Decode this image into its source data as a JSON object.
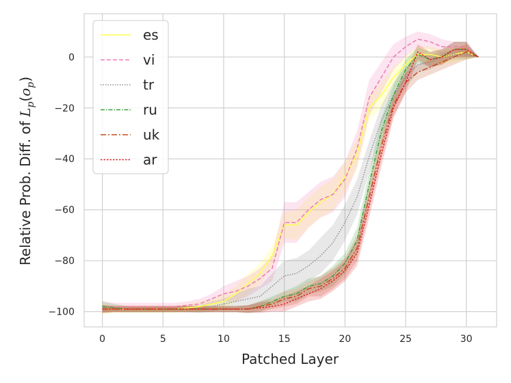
{
  "chart_data": {
    "type": "line",
    "title": "",
    "xlabel": "Patched Layer",
    "ylabel_text": "Relative Prob. Diff. of ",
    "ylabel_math": {
      "script": "L",
      "sub": "p",
      "open": "(",
      "var": "o",
      "var_sub": "p",
      "close": ")"
    },
    "xlim": [
      -1.5,
      32.5
    ],
    "ylim": [
      -106,
      17
    ],
    "xticks": [
      0,
      5,
      10,
      15,
      20,
      25,
      30
    ],
    "xtick_labels": [
      "0",
      "5",
      "10",
      "15",
      "20",
      "25",
      "30"
    ],
    "yticks": [
      0,
      -20,
      -40,
      -60,
      -80,
      -100
    ],
    "ytick_labels": [
      "0",
      "−20",
      "−40",
      "−60",
      "−80",
      "−100"
    ],
    "grid": true,
    "legend_position": "top-left",
    "x": [
      0,
      1,
      2,
      3,
      4,
      5,
      6,
      7,
      8,
      9,
      10,
      11,
      12,
      13,
      14,
      15,
      16,
      17,
      18,
      19,
      20,
      21,
      22,
      23,
      24,
      25,
      26,
      27,
      28,
      29,
      30,
      31
    ],
    "series": [
      {
        "name": "es",
        "color": "#ffff4d",
        "dash": "",
        "values": [
          -99,
          -99,
          -99,
          -99,
          -99,
          -99,
          -99,
          -98.5,
          -98,
          -97,
          -96,
          -93,
          -89,
          -85,
          -78,
          -66,
          -66,
          -61,
          -57,
          -54,
          -47,
          -38,
          -20,
          -15,
          -8,
          -3,
          1,
          1,
          0,
          1,
          2,
          0
        ],
        "band": [
          2,
          1.5,
          1.5,
          1.5,
          1.5,
          1.5,
          1.5,
          1.5,
          2,
          2,
          3,
          3,
          4,
          4,
          4,
          5,
          6,
          6,
          6,
          6,
          6,
          6,
          5,
          5,
          4,
          3,
          3,
          3,
          3,
          3,
          3,
          0
        ]
      },
      {
        "name": "vi",
        "color": "#ee79b2",
        "dash": "6 3",
        "values": [
          -98,
          -98,
          -98,
          -98,
          -98,
          -98,
          -98,
          -97.5,
          -97,
          -95,
          -93,
          -92,
          -90,
          -87,
          -83,
          -65,
          -65,
          -60,
          -56,
          -54,
          -48,
          -36,
          -16,
          -8,
          0,
          4,
          7,
          6,
          4,
          4,
          4,
          0
        ],
        "band": [
          2,
          1.5,
          1.5,
          1.5,
          1.5,
          1.5,
          1.5,
          1.5,
          2,
          2,
          3,
          4,
          4,
          4,
          5,
          8,
          8,
          7,
          7,
          7,
          7,
          7,
          7,
          6,
          5,
          4,
          3,
          3,
          3,
          2,
          2,
          0
        ]
      },
      {
        "name": "tr",
        "color": "#8c8c8c",
        "dash": "1.5 2",
        "values": [
          -99,
          -99,
          -99,
          -99,
          -99,
          -99,
          -99,
          -99,
          -99,
          -98,
          -97,
          -96,
          -95,
          -94,
          -90,
          -86,
          -85,
          -82,
          -78,
          -73,
          -65,
          -55,
          -39,
          -25,
          -15,
          -8,
          -3,
          -2,
          0,
          1,
          1,
          0
        ],
        "band": [
          1.5,
          1.2,
          1.2,
          1.2,
          1.2,
          1.2,
          1.2,
          1.2,
          1.5,
          2,
          2,
          3,
          4,
          4,
          5,
          6,
          6,
          6,
          7,
          7,
          7,
          7,
          6,
          6,
          5,
          4,
          3,
          3,
          2,
          2,
          2,
          0
        ]
      },
      {
        "name": "ru",
        "color": "#3aa03a",
        "dash": "6 2 1.5 2",
        "values": [
          -98,
          -98.5,
          -99,
          -99,
          -99,
          -99,
          -99,
          -99,
          -99,
          -99,
          -99,
          -99,
          -99,
          -98,
          -96,
          -94,
          -93,
          -90,
          -89,
          -86,
          -81,
          -72,
          -50,
          -29,
          -15,
          -5,
          1,
          -1,
          0,
          3,
          3,
          0
        ],
        "band": [
          2,
          1.5,
          1.2,
          1.2,
          1.2,
          1.2,
          1.2,
          1.2,
          1.2,
          1.2,
          1.2,
          1.2,
          1.5,
          2,
          2,
          2,
          3,
          3,
          3,
          4,
          4,
          5,
          5,
          5,
          4,
          4,
          3,
          3,
          3,
          3,
          3,
          0
        ]
      },
      {
        "name": "uk",
        "color": "#c04a1a",
        "dash": "8 3 2 3",
        "values": [
          -99,
          -99,
          -99,
          -99,
          -99,
          -99,
          -99,
          -99,
          -99,
          -99,
          -99,
          -99,
          -99,
          -98,
          -97,
          -95,
          -94,
          -91,
          -90,
          -87,
          -83,
          -75,
          -55,
          -35,
          -19,
          -10,
          -6,
          -4,
          -2,
          0,
          2,
          0
        ],
        "band": [
          1.5,
          1.2,
          1.2,
          1.2,
          1.2,
          1.2,
          1.2,
          1.2,
          1.2,
          1.2,
          1.2,
          1.2,
          1.5,
          2,
          2,
          3,
          3,
          3,
          4,
          4,
          4,
          5,
          5,
          5,
          4,
          4,
          3,
          3,
          3,
          3,
          3,
          0
        ]
      },
      {
        "name": "ar",
        "color": "#e0242a",
        "dash": "2.5 2",
        "values": [
          -99,
          -99,
          -99,
          -99,
          -99,
          -99,
          -99,
          -99,
          -99,
          -99,
          -99,
          -99,
          -99,
          -98.5,
          -98,
          -97,
          -95,
          -93,
          -91,
          -88,
          -84,
          -77,
          -58,
          -38,
          -20,
          -10,
          2,
          -1,
          0,
          3,
          3,
          0
        ],
        "band": [
          1.5,
          1.2,
          1.2,
          1.2,
          1.2,
          1.2,
          1.2,
          1.2,
          1.2,
          1.2,
          1.2,
          1.2,
          1.5,
          2,
          2,
          3,
          3,
          3,
          4,
          4,
          4,
          5,
          5,
          5,
          4,
          4,
          3,
          3,
          3,
          3,
          3,
          0
        ]
      }
    ]
  }
}
